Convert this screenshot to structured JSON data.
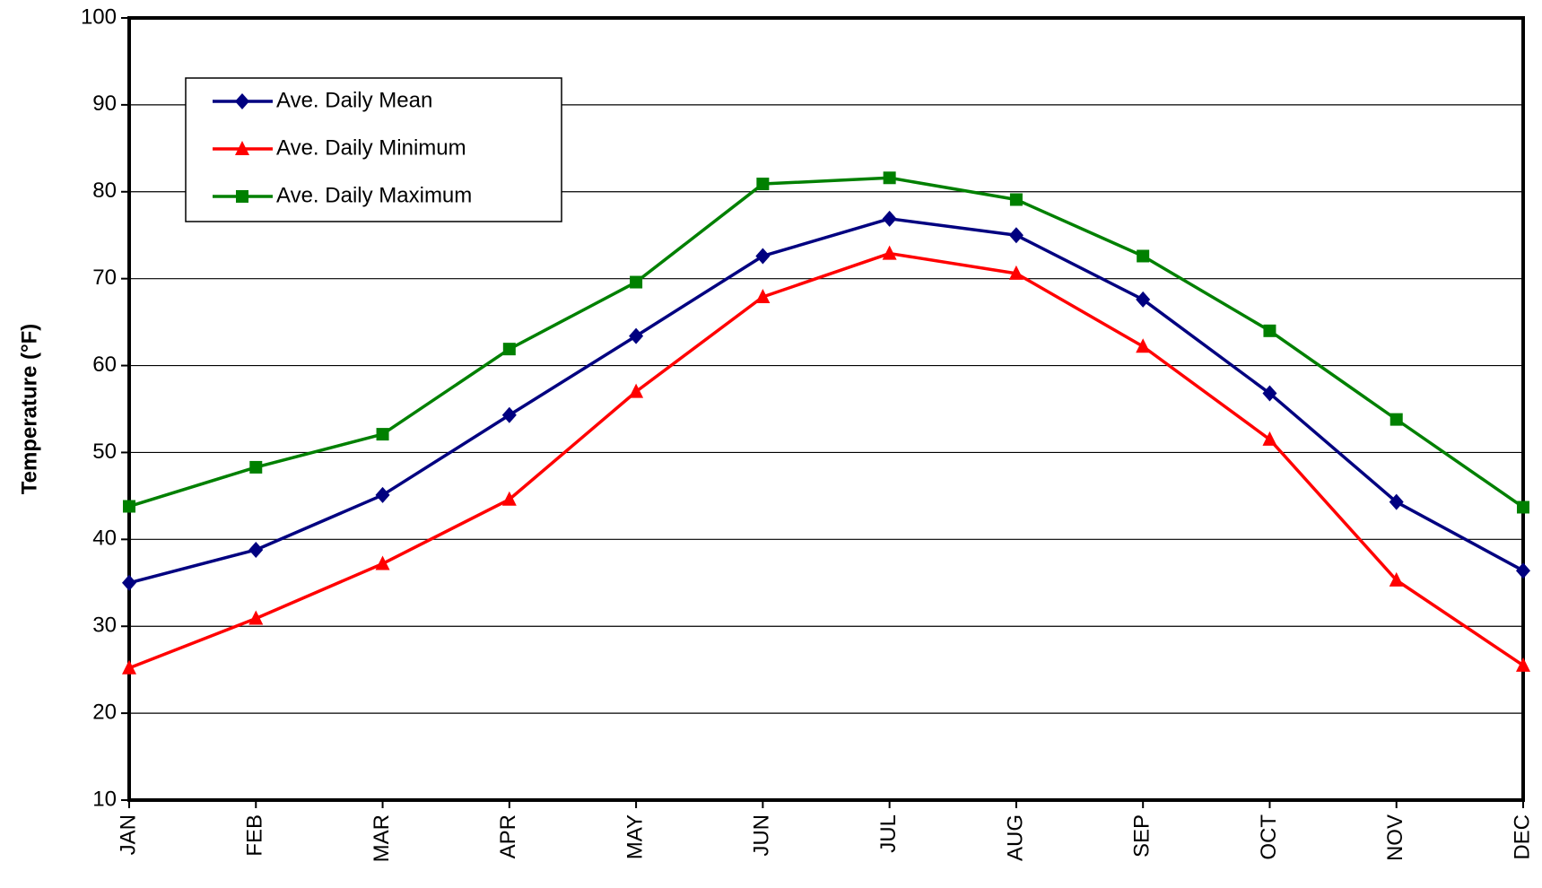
{
  "chart_data": {
    "type": "line",
    "y_label": "Temperature (°F)",
    "categories": [
      "JAN",
      "FEB",
      "MAR",
      "APR",
      "MAY",
      "JUN",
      "JUL",
      "AUG",
      "SEP",
      "OCT",
      "NOV",
      "DEC"
    ],
    "series": [
      {
        "name": "Ave. Daily Mean",
        "color": "#000080",
        "marker": "diamond",
        "values": [
          35.0,
          38.8,
          45.1,
          54.3,
          63.4,
          72.6,
          76.9,
          75.0,
          67.6,
          56.8,
          44.3,
          36.4
        ]
      },
      {
        "name": "Ave. Daily Minimum",
        "color": "#ff0000",
        "marker": "triangle",
        "values": [
          25.2,
          30.9,
          37.2,
          44.6,
          57.0,
          67.9,
          72.9,
          70.6,
          62.2,
          51.5,
          35.3,
          25.5
        ]
      },
      {
        "name": "Ave. Daily Maximum",
        "color": "#008000",
        "marker": "square",
        "values": [
          43.8,
          48.3,
          52.1,
          61.9,
          69.6,
          80.9,
          81.6,
          79.1,
          72.6,
          64.0,
          53.8,
          43.7
        ]
      }
    ],
    "ylim": [
      10,
      100
    ],
    "yticks": [
      10,
      20,
      30,
      40,
      50,
      60,
      70,
      80,
      90,
      100
    ],
    "grid": true,
    "legend": "upper left"
  }
}
